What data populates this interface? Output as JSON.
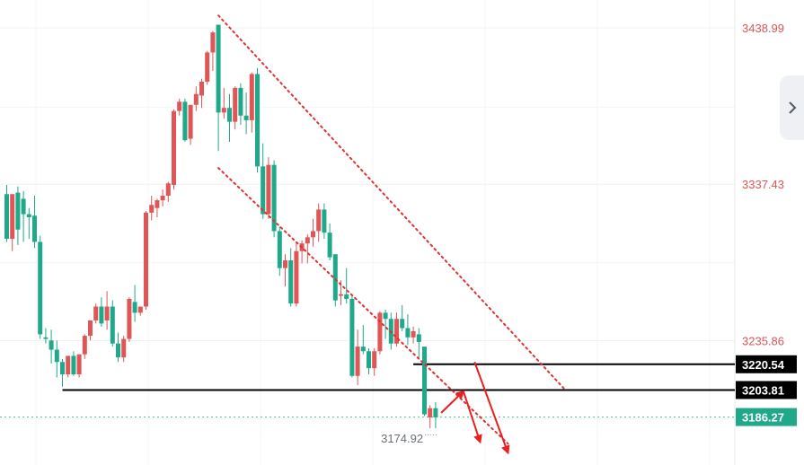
{
  "chart_data": {
    "type": "candlestick",
    "title": "",
    "xlabel": "",
    "ylabel": "",
    "ylim": [
      3160,
      3480
    ],
    "grid": true,
    "colors": {
      "up": "#e05555",
      "down": "#1fa98a",
      "trendline": "#e03030",
      "arrow": "#e82020",
      "axis_text": "#e05555",
      "current_price_bg": "#1fa98a"
    },
    "price_labels": [
      "3438.99",
      "3337.43",
      "3235.86"
    ],
    "candles": [
      [
        3331,
        3337,
        3300,
        3302
      ],
      [
        3302,
        3331,
        3294,
        3331
      ],
      [
        3332,
        3336,
        3298,
        3308
      ],
      [
        3328,
        3333,
        3300,
        3318
      ],
      [
        3318,
        3322,
        3302,
        3316
      ],
      [
        3317,
        3330,
        3296,
        3300
      ],
      [
        3300,
        3304,
        3237,
        3240
      ],
      [
        3238,
        3244,
        3234,
        3237
      ],
      [
        3236,
        3243,
        3221,
        3230
      ],
      [
        3230,
        3236,
        3212,
        3222
      ],
      [
        3222,
        3224,
        3206,
        3214
      ],
      [
        3214,
        3226,
        3212,
        3226
      ],
      [
        3226,
        3229,
        3213,
        3214
      ],
      [
        3214,
        3227,
        3212,
        3227
      ],
      [
        3227,
        3240,
        3224,
        3239
      ],
      [
        3239,
        3249,
        3236,
        3249
      ],
      [
        3249,
        3260,
        3247,
        3258
      ],
      [
        3258,
        3264,
        3245,
        3247
      ],
      [
        3249,
        3268,
        3243,
        3258
      ],
      [
        3258,
        3262,
        3232,
        3234
      ],
      [
        3234,
        3241,
        3222,
        3225
      ],
      [
        3225,
        3239,
        3222,
        3237
      ],
      [
        3237,
        3264,
        3235,
        3263
      ],
      [
        3261,
        3272,
        3248,
        3254
      ],
      [
        3254,
        3258,
        3252,
        3258
      ],
      [
        3258,
        3320,
        3256,
        3319
      ],
      [
        3319,
        3330,
        3314,
        3324
      ],
      [
        3322,
        3328,
        3316,
        3327
      ],
      [
        3327,
        3334,
        3323,
        3330
      ],
      [
        3330,
        3339,
        3326,
        3338
      ],
      [
        3337,
        3386,
        3334,
        3385
      ],
      [
        3385,
        3393,
        3382,
        3391
      ],
      [
        3391,
        3393,
        3365,
        3366
      ],
      [
        3367,
        3389,
        3363,
        3389
      ],
      [
        3389,
        3401,
        3385,
        3396
      ],
      [
        3395,
        3406,
        3387,
        3404
      ],
      [
        3404,
        3424,
        3402,
        3423
      ],
      [
        3423,
        3437,
        3411,
        3436
      ],
      [
        3441,
        3441,
        3359,
        3384
      ],
      [
        3384,
        3400,
        3380,
        3387
      ],
      [
        3387,
        3396,
        3365,
        3378
      ],
      [
        3378,
        3401,
        3373,
        3400
      ],
      [
        3400,
        3403,
        3376,
        3382
      ],
      [
        3382,
        3397,
        3370,
        3379
      ],
      [
        3379,
        3410,
        3371,
        3409
      ],
      [
        3409,
        3413,
        3345,
        3349
      ],
      [
        3349,
        3364,
        3315,
        3318
      ],
      [
        3318,
        3355,
        3315,
        3350
      ],
      [
        3350,
        3353,
        3303,
        3307
      ],
      [
        3307,
        3310,
        3278,
        3283
      ],
      [
        3283,
        3292,
        3271,
        3288
      ],
      [
        3288,
        3296,
        3258,
        3260
      ],
      [
        3260,
        3299,
        3258,
        3294
      ],
      [
        3294,
        3301,
        3286,
        3299
      ],
      [
        3299,
        3305,
        3286,
        3303
      ],
      [
        3303,
        3315,
        3297,
        3307
      ],
      [
        3307,
        3325,
        3300,
        3321
      ],
      [
        3321,
        3325,
        3302,
        3306
      ],
      [
        3306,
        3312,
        3288,
        3290
      ],
      [
        3292,
        3290,
        3258,
        3262
      ],
      [
        3265,
        3275,
        3259,
        3266
      ],
      [
        3266,
        3283,
        3260,
        3263
      ],
      [
        3263,
        3266,
        3212,
        3213
      ],
      [
        3213,
        3243,
        3207,
        3232
      ],
      [
        3232,
        3246,
        3227,
        3229
      ],
      [
        3229,
        3231,
        3214,
        3218
      ],
      [
        3218,
        3231,
        3213,
        3229
      ],
      [
        3229,
        3255,
        3227,
        3254
      ],
      [
        3254,
        3256,
        3237,
        3250
      ],
      [
        3250,
        3254,
        3230,
        3234
      ],
      [
        3234,
        3254,
        3232,
        3250
      ],
      [
        3250,
        3259,
        3242,
        3244
      ],
      [
        3244,
        3253,
        3233,
        3238
      ],
      [
        3238,
        3245,
        3234,
        3242
      ],
      [
        3240,
        3244,
        3224,
        3235
      ],
      [
        3232,
        3230,
        3187,
        3188
      ],
      [
        3186,
        3194,
        3179,
        3192
      ],
      [
        3192,
        3196,
        3179,
        3186
      ]
    ],
    "horizontal_levels": [
      {
        "value": 3220.54,
        "label": "3220.54",
        "from_index": 73
      },
      {
        "value": 3203.81,
        "label": "3203.81",
        "from_index": 10
      }
    ],
    "current_price": {
      "value": 3186.27,
      "label": "3186.27"
    },
    "low_marker": {
      "value": 3174.92,
      "label": "3174.92",
      "index": 78
    },
    "channel": {
      "upper": {
        "i1": 38,
        "v1": 3447,
        "i2": 100,
        "v2": 3205
      },
      "lower": {
        "i1": 38,
        "v1": 3348,
        "i2": 90,
        "v2": 3169
      }
    },
    "arrows": [
      {
        "i1": 78,
        "v1": 3189,
        "i2": 82,
        "v2": 3203
      },
      {
        "i1": 82,
        "v1": 3203,
        "i2": 85,
        "v2": 3170
      },
      {
        "i1": 84,
        "v1": 3222,
        "i2": 90,
        "v2": 3163
      }
    ],
    "axis_side": "right"
  },
  "ui": {
    "scroll_icon": "chevron-right-icon"
  }
}
